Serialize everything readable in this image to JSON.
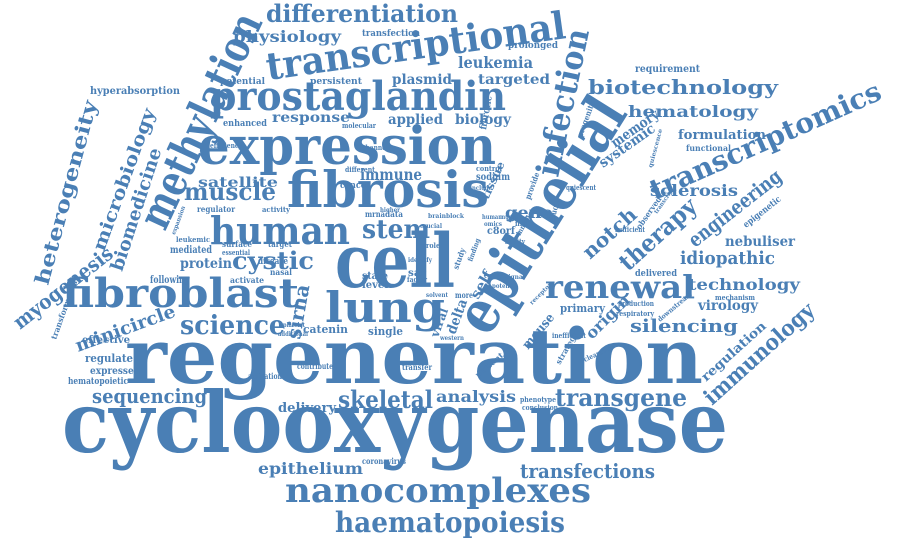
{
  "colors": {
    "word": "#4a7fb5",
    "background": "#ffffff"
  },
  "words": [
    "cyclooxygenase",
    "regeneration",
    "cell",
    "epithelial",
    "expression",
    "fibrosis",
    "methylation",
    "prostaglandin",
    "transcriptional",
    "fibroblast",
    "human",
    "lung",
    "transcriptomics",
    "nanocomplexes",
    "haematopoiesis",
    "renewal",
    "infection",
    "differentiation",
    "science",
    "stem",
    "muscle",
    "cystic",
    "skeletal",
    "transgene",
    "sequencing",
    "transfections",
    "biotechnology",
    "immunology",
    "therapy",
    "engineering",
    "heterogeneity",
    "microbiology",
    "biomedicine",
    "myogenesis",
    "minicircle",
    "epithelium",
    "silencing",
    "technology",
    "idiopathic",
    "notch",
    "sirna",
    "physiology",
    "leukemia",
    "hematology",
    "response",
    "satellite",
    "sclerosis",
    "analysis",
    "origin",
    "regulation",
    "gene",
    "nebuliser",
    "protein",
    "delivery",
    "applied",
    "biology",
    "plasmid",
    "targeted",
    "formulation",
    "memory",
    "systemic",
    "virology",
    "hyperabsorption",
    "requirement",
    "transfection",
    "prolonged",
    "potential",
    "persistent",
    "enhanced",
    "immune",
    "tissue",
    "self",
    "mouse",
    "delta",
    "viral",
    "regulate",
    "expressed",
    "hematopoietic",
    "effective",
    "following",
    "mediated",
    "catenin",
    "single",
    "state",
    "level",
    "primary",
    "sodium",
    "cancer",
    "fibrotic",
    "progenitor",
    "functional",
    "epigenetic",
    "observed",
    "delivered",
    "mechanism",
    "downstream",
    "patient",
    "strategy",
    "conclusion",
    "phenotype",
    "coronavirus",
    "contribute",
    "transfer",
    "activation",
    "transformation",
    "disease",
    "nasal",
    "activate",
    "surface",
    "essential",
    "target",
    "regulator",
    "activity",
    "leukemic",
    "mrna",
    "data",
    "different",
    "molecular",
    "channel",
    "control",
    "factor",
    "sar",
    "role",
    "c8orf",
    "ability",
    "innate",
    "mucus",
    "find",
    "study",
    "entry",
    "efficiency",
    "quiescence",
    "quiescent",
    "provide",
    "sufficient",
    "production",
    "respiratory",
    "clearance",
    "inefficient",
    "receptor",
    "western",
    "platelet",
    "additional",
    "expansion",
    "more",
    "finding",
    "transcript",
    "human",
    "mucus",
    "omics",
    "higher",
    "solvent",
    "include",
    "brain",
    "block",
    "crucial",
    "identify",
    "potent",
    "signal"
  ]
}
